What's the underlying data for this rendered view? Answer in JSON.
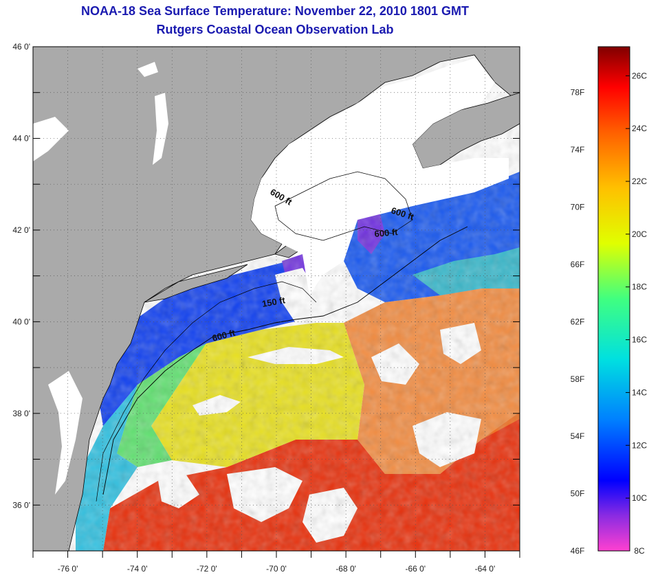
{
  "title": {
    "line1": "NOAA-18 Sea Surface Temperature:  November 22, 2010 1801 GMT",
    "line2": "Rutgers Coastal Ocean Observation Lab"
  },
  "map": {
    "lat_ticks": [
      {
        "value": 36,
        "label": "36 0'"
      },
      {
        "value": 38,
        "label": "38 0'"
      },
      {
        "value": 40,
        "label": "40 0'"
      },
      {
        "value": 42,
        "label": "42 0'"
      },
      {
        "value": 44,
        "label": "44 0'"
      },
      {
        "value": 46,
        "label": "46 0'"
      }
    ],
    "lon_ticks": [
      {
        "value": -76,
        "label": "-76 0'"
      },
      {
        "value": -74,
        "label": "-74 0'"
      },
      {
        "value": -72,
        "label": "-72 0'"
      },
      {
        "value": -70,
        "label": "-70 0'"
      },
      {
        "value": -68,
        "label": "-68 0'"
      },
      {
        "value": -66,
        "label": "-66 0'"
      },
      {
        "value": -64,
        "label": "-64 0'"
      }
    ],
    "lat_range": [
      35,
      46
    ],
    "lon_range": [
      -77,
      -63
    ],
    "contour_labels": [
      "600 ft",
      "600 ft",
      "600 ft",
      "150 ft",
      "600 ft"
    ],
    "colors": {
      "land": "#aaaaaa",
      "cloud": "#ffffff",
      "coast": "#000000"
    }
  },
  "colorbar": {
    "fahrenheit_labels": [
      "46F",
      "50F",
      "54F",
      "58F",
      "62F",
      "66F",
      "70F",
      "74F",
      "78F"
    ],
    "celsius_labels": [
      "8C",
      "10C",
      "12C",
      "14C",
      "16C",
      "18C",
      "20C",
      "22C",
      "24C",
      "26C"
    ],
    "colors": [
      "#ff40d0",
      "#8a2be2",
      "#0000ff",
      "#0080ff",
      "#00e0e0",
      "#40ff80",
      "#e0ff00",
      "#ffc000",
      "#ff6000",
      "#ff0000",
      "#800000"
    ]
  }
}
